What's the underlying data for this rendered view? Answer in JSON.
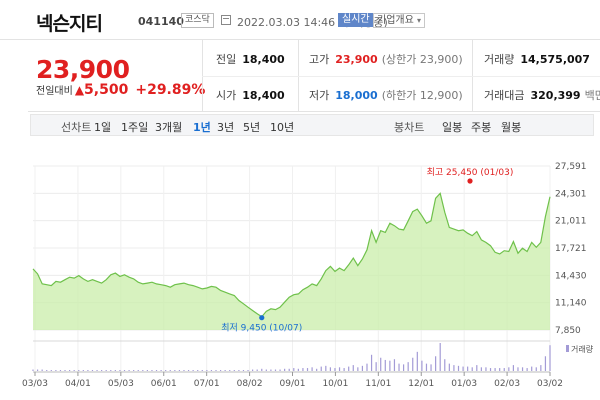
{
  "header": {
    "name": "넥슨지티",
    "code": "041140",
    "market": "코스닥",
    "as_of": "2022.03.03 14:46 기준(장중)",
    "realtime": "실시간",
    "company_info": "기업개요",
    "caret": "▾"
  },
  "quote": {
    "price": "23,900",
    "change_label": "전일대비",
    "change_arrow": "▲",
    "change": "5,500",
    "change_pct": "+29.89%",
    "prev_close_label": "전일",
    "prev_close": "18,400",
    "open_label": "시가",
    "open": "18,400",
    "high_label": "고가",
    "high": "23,900",
    "upper_limit": "(상한가 23,900)",
    "low_label": "저가",
    "low": "18,000",
    "lower_limit": "(하한가 12,900)",
    "volume_label": "거래량",
    "volume": "14,575,007",
    "amount_label": "거래대금",
    "amount": "320,399",
    "amount_unit": "백만"
  },
  "periods": {
    "line_chart": "선차트",
    "items": [
      "1일",
      "1주일",
      "3개월",
      "1년",
      "3년",
      "5년",
      "10년"
    ],
    "active": "1년",
    "candle_chart": "봉차트",
    "candle_items": [
      "일봉",
      "주봉",
      "월봉"
    ]
  },
  "colors": {
    "up": "#e02020",
    "down": "#1a6fd1",
    "line": "#6fc14b",
    "fill": "#c9eeaa",
    "volume": "#a39bd6"
  },
  "chart_data": {
    "type": "area",
    "y_ticks": [
      "27,591",
      "24,301",
      "21,011",
      "17,721",
      "14,430",
      "11,140",
      "7,850"
    ],
    "ylim": [
      7850,
      27591
    ],
    "x_ticks": [
      "03/03",
      "04/01",
      "05/03",
      "06/01",
      "07/01",
      "08/02",
      "09/01",
      "10/01",
      "11/01",
      "12/01",
      "01/03",
      "02/03",
      "03/02"
    ],
    "series": [
      {
        "values": [
          15200,
          14600,
          13400,
          13300,
          13200,
          13700,
          13600,
          13900,
          14200,
          14100,
          14400,
          14000,
          13700,
          13900,
          13700,
          13500,
          13900,
          14500,
          14700,
          14300,
          14500,
          14200,
          14000,
          13600,
          13400,
          13500,
          13600,
          13400,
          13300,
          13200,
          13000,
          13300,
          13400,
          13500,
          13300,
          13200,
          13000,
          12800,
          12900,
          13100,
          13000,
          12600,
          12400,
          12200,
          12000,
          11400,
          11000,
          10600,
          10200,
          9800,
          9450,
          10100,
          10400,
          10300,
          10600,
          11200,
          11800,
          12100,
          12200,
          12700,
          13000,
          13400,
          13200,
          14000,
          15000,
          15500,
          14900,
          15300,
          15000,
          15700,
          16500,
          15600,
          16400,
          17500,
          19800,
          18400,
          19800,
          19600,
          20700,
          20400,
          20000,
          19900,
          21000,
          22100,
          22400,
          21600,
          20700,
          21000,
          23700,
          24300,
          22000,
          20200,
          20000,
          19800,
          19900,
          19500,
          19200,
          19700,
          18700,
          18400,
          18000,
          17200,
          17000,
          17400,
          17300,
          18500,
          17100,
          17700,
          17300,
          18400,
          17800,
          18400,
          21500,
          23900
        ]
      }
    ],
    "high_annotation": "최고 25,450 (01/03)",
    "low_annotation": "최저 9,450 (10/07)",
    "volume_label": "거래량",
    "volume_values": [
      2,
      2,
      2,
      1,
      1,
      1,
      1,
      1,
      1,
      1,
      1,
      1,
      1,
      1,
      1,
      1,
      1,
      1,
      1,
      1,
      1,
      1,
      1,
      1,
      1,
      1,
      1,
      1,
      1,
      1,
      1,
      1,
      1,
      1,
      1,
      1,
      1,
      1,
      1,
      1,
      1,
      1,
      1,
      1,
      1,
      1,
      1,
      1,
      2,
      2,
      3,
      2,
      2,
      2,
      2,
      3,
      3,
      4,
      3,
      4,
      4,
      5,
      3,
      6,
      7,
      5,
      4,
      5,
      4,
      6,
      8,
      5,
      7,
      10,
      22,
      12,
      18,
      15,
      14,
      16,
      10,
      9,
      12,
      18,
      26,
      14,
      10,
      9,
      20,
      38,
      16,
      10,
      8,
      7,
      6,
      6,
      5,
      8,
      5,
      5,
      4,
      4,
      4,
      4,
      5,
      8,
      5,
      5,
      4,
      6,
      5,
      8,
      20,
      35
    ]
  }
}
